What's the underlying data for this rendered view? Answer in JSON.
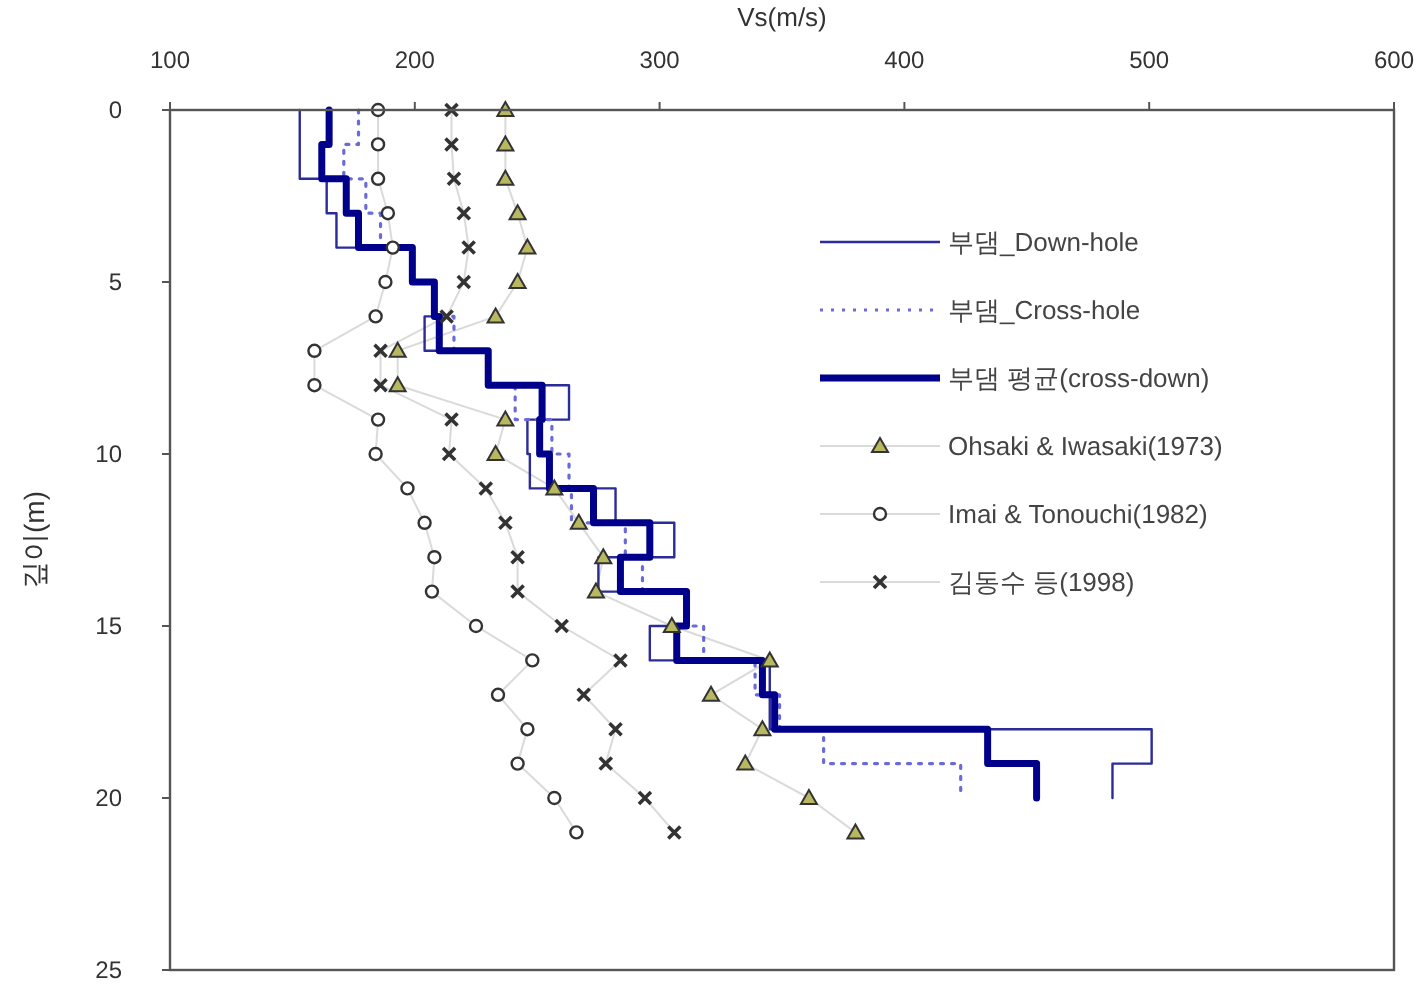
{
  "chart_data": {
    "type": "line",
    "xlabel": "Vs(m/s)",
    "ylabel": "깊이(m)",
    "xlim": [
      100,
      600
    ],
    "xticks": [
      100,
      200,
      300,
      400,
      500,
      600
    ],
    "ylim": [
      25,
      0
    ],
    "yticks": [
      0,
      5,
      10,
      15,
      20,
      25
    ],
    "legend": "right",
    "grid": false,
    "series": [
      {
        "name": "부댐_Down-hole",
        "color": "#2b2b9a",
        "line_style": "solid",
        "marker": "none",
        "x": [
          153,
          153,
          164,
          164,
          168,
          168,
          199,
          199,
          208,
          208,
          204,
          204,
          230,
          230,
          263,
          263,
          246,
          246,
          247,
          247,
          282,
          282,
          306,
          306,
          275,
          275,
          311,
          311,
          296,
          296,
          345,
          345,
          345,
          345,
          501,
          501,
          485,
          485
        ],
        "values": [
          0,
          2,
          2,
          3,
          3,
          4,
          4,
          5,
          5,
          6,
          6,
          7,
          7,
          8,
          8,
          9,
          9,
          10,
          10,
          11,
          11,
          12,
          12,
          13,
          13,
          14,
          14,
          15,
          15,
          16,
          16,
          17,
          17,
          18,
          18,
          19,
          19,
          20
        ]
      },
      {
        "name": "부댐_Cross-hole",
        "color": "#6a6ad8",
        "line_style": "dotted",
        "marker": "none",
        "x": [
          177,
          177,
          171,
          171,
          180,
          180,
          186,
          186,
          199,
          199,
          208,
          208,
          216,
          216,
          230,
          230,
          241,
          241,
          256,
          256,
          263,
          263,
          264,
          264,
          286,
          286,
          293,
          293,
          311,
          311,
          318,
          318,
          339,
          339,
          349,
          349,
          367,
          367,
          423,
          423
        ],
        "values": [
          0,
          1,
          1,
          2,
          2,
          3,
          3,
          4,
          4,
          5,
          5,
          6,
          6,
          7,
          7,
          8,
          8,
          9,
          9,
          10,
          10,
          11,
          11,
          12,
          12,
          13,
          13,
          14,
          14,
          15,
          15,
          16,
          16,
          17,
          17,
          18,
          18,
          19,
          19,
          20
        ]
      },
      {
        "name": "부댐 평균(cross-down)",
        "color": "#00008b",
        "line_style": "solid",
        "marker": "none",
        "x": [
          165,
          165,
          162,
          162,
          172,
          172,
          177,
          177,
          199,
          199,
          208,
          208,
          210,
          210,
          230,
          230,
          252,
          252,
          251,
          251,
          255,
          255,
          273,
          273,
          296,
          296,
          284,
          284,
          311,
          311,
          307,
          307,
          342,
          342,
          347,
          347,
          434,
          434,
          454,
          454
        ],
        "values": [
          0,
          1,
          1,
          2,
          2,
          3,
          3,
          4,
          4,
          5,
          5,
          6,
          6,
          7,
          7,
          8,
          8,
          9,
          9,
          10,
          10,
          11,
          11,
          12,
          12,
          13,
          13,
          14,
          14,
          15,
          15,
          16,
          16,
          17,
          17,
          18,
          18,
          19,
          19,
          20
        ]
      },
      {
        "name": "Ohsaki & Iwasaki(1973)",
        "color": "#333333",
        "line_style": "solid",
        "marker": "triangle",
        "x": [
          237,
          237,
          237,
          242,
          246,
          242,
          233,
          193,
          193,
          237,
          233,
          257,
          267,
          277,
          274,
          305,
          345,
          321,
          342,
          335,
          361,
          380
        ],
        "values": [
          0,
          1,
          2,
          3,
          4,
          5,
          6,
          7,
          8,
          9,
          10,
          11,
          12,
          13,
          14,
          15,
          16,
          17,
          18,
          19,
          20,
          21
        ]
      },
      {
        "name": "Imai & Tonouchi(1982)",
        "color": "#333333",
        "line_style": "solid",
        "marker": "circle",
        "x": [
          185,
          185,
          185,
          189,
          191,
          188,
          184,
          159,
          159,
          185,
          184,
          197,
          204,
          208,
          207,
          225,
          248,
          234,
          246,
          242,
          257,
          266
        ],
        "values": [
          0,
          1,
          2,
          3,
          4,
          5,
          6,
          7,
          8,
          9,
          10,
          11,
          12,
          13,
          14,
          15,
          16,
          17,
          18,
          19,
          20,
          21
        ]
      },
      {
        "name": "김동수 등(1998)",
        "color": "#333333",
        "line_style": "solid",
        "marker": "cross",
        "x": [
          215,
          215,
          216,
          220,
          222,
          220,
          213,
          186,
          186,
          215,
          214,
          229,
          237,
          242,
          242,
          260,
          284,
          269,
          282,
          278,
          294,
          306
        ],
        "values": [
          0,
          1,
          2,
          3,
          4,
          5,
          6,
          7,
          8,
          9,
          10,
          11,
          12,
          13,
          14,
          15,
          16,
          17,
          18,
          19,
          20,
          21
        ]
      }
    ]
  }
}
